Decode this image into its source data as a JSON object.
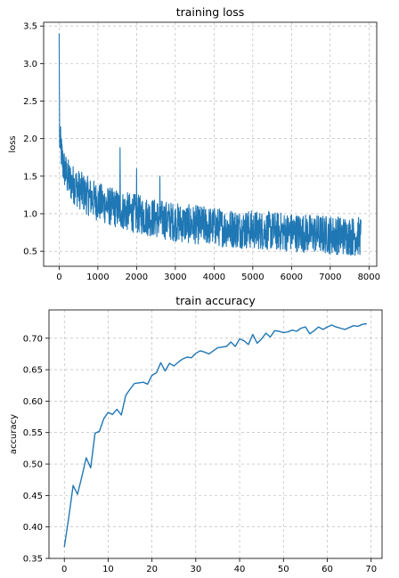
{
  "chart_data": [
    {
      "type": "line",
      "title": "training loss",
      "xlabel": "",
      "ylabel": "loss",
      "xlim": [
        -400,
        8200
      ],
      "ylim": [
        0.3,
        3.55
      ],
      "xticks": [
        0,
        1000,
        2000,
        3000,
        4000,
        5000,
        6000,
        7000,
        8000
      ],
      "yticks": [
        0.5,
        1.0,
        1.5,
        2.0,
        2.5,
        3.0,
        3.5
      ],
      "xtick_labels": [
        "0",
        "1000",
        "2000",
        "3000",
        "4000",
        "5000",
        "6000",
        "7000",
        "8000"
      ],
      "ytick_labels": [
        "0.5",
        "1.0",
        "1.5",
        "2.0",
        "2.5",
        "3.0",
        "3.5"
      ],
      "grid": true,
      "color": "#1f77b4",
      "series": [
        {
          "x": [
            0,
            20,
            50,
            100,
            200,
            300,
            400,
            500,
            600,
            700,
            800,
            900,
            1000,
            1200,
            1400,
            1600,
            1800,
            2000,
            2200,
            2400,
            2600,
            2800,
            3000,
            3200,
            3400,
            3600,
            3800,
            4000,
            4300,
            4600,
            4900,
            5200,
            5500,
            5800,
            6100,
            6400,
            6700,
            7000,
            7300,
            7600,
            7800
          ],
          "y": [
            3.4,
            2.0,
            1.85,
            1.65,
            1.5,
            1.42,
            1.38,
            1.33,
            1.29,
            1.25,
            1.22,
            1.19,
            1.16,
            1.12,
            1.08,
            1.05,
            1.02,
            1.0,
            0.97,
            0.95,
            0.93,
            0.91,
            0.89,
            0.87,
            0.86,
            0.85,
            0.84,
            0.83,
            0.81,
            0.8,
            0.79,
            0.78,
            0.77,
            0.76,
            0.75,
            0.74,
            0.73,
            0.72,
            0.71,
            0.7,
            0.7
          ],
          "spread": [
            0.0,
            0.25,
            0.25,
            0.26,
            0.26,
            0.26,
            0.26,
            0.26,
            0.26,
            0.26,
            0.26,
            0.26,
            0.26,
            0.26,
            0.26,
            0.26,
            0.26,
            0.26,
            0.26,
            0.26,
            0.26,
            0.26,
            0.26,
            0.26,
            0.26,
            0.26,
            0.26,
            0.26,
            0.26,
            0.26,
            0.26,
            0.26,
            0.26,
            0.26,
            0.26,
            0.26,
            0.26,
            0.26,
            0.26,
            0.26,
            0.26
          ],
          "spikes": [
            [
              1570,
              1.88
            ],
            [
              2000,
              1.6
            ],
            [
              2600,
              1.5
            ]
          ]
        }
      ]
    },
    {
      "type": "line",
      "title": "train accuracy",
      "xlabel": "",
      "ylabel": "accuracy",
      "xlim": [
        -3.5,
        72.5
      ],
      "ylim": [
        0.35,
        0.745
      ],
      "xticks": [
        0,
        10,
        20,
        30,
        40,
        50,
        60,
        70
      ],
      "yticks": [
        0.35,
        0.4,
        0.45,
        0.5,
        0.55,
        0.6,
        0.65,
        0.7
      ],
      "xtick_labels": [
        "0",
        "10",
        "20",
        "30",
        "40",
        "50",
        "60",
        "70"
      ],
      "ytick_labels": [
        "0.35",
        "0.40",
        "0.45",
        "0.50",
        "0.55",
        "0.60",
        "0.65",
        "0.70"
      ],
      "grid": true,
      "color": "#1f77b4",
      "series": [
        {
          "x": [
            0,
            1,
            2,
            3,
            4,
            5,
            6,
            7,
            8,
            9,
            10,
            11,
            12,
            13,
            14,
            15,
            16,
            17,
            18,
            19,
            20,
            21,
            22,
            23,
            24,
            25,
            26,
            27,
            28,
            29,
            30,
            31,
            32,
            33,
            34,
            35,
            36,
            37,
            38,
            39,
            40,
            41,
            42,
            43,
            44,
            45,
            46,
            47,
            48,
            49,
            50,
            51,
            52,
            53,
            54,
            55,
            56,
            57,
            58,
            59,
            60,
            61,
            62,
            63,
            64,
            65,
            66,
            67,
            68,
            69
          ],
          "y": [
            0.368,
            0.414,
            0.466,
            0.452,
            0.48,
            0.51,
            0.494,
            0.549,
            0.552,
            0.572,
            0.582,
            0.579,
            0.587,
            0.578,
            0.609,
            0.619,
            0.628,
            0.629,
            0.63,
            0.627,
            0.641,
            0.645,
            0.661,
            0.648,
            0.66,
            0.656,
            0.662,
            0.667,
            0.67,
            0.669,
            0.676,
            0.68,
            0.678,
            0.675,
            0.68,
            0.685,
            0.686,
            0.687,
            0.694,
            0.687,
            0.699,
            0.696,
            0.69,
            0.706,
            0.692,
            0.699,
            0.708,
            0.702,
            0.712,
            0.711,
            0.709,
            0.71,
            0.713,
            0.711,
            0.716,
            0.718,
            0.707,
            0.712,
            0.718,
            0.714,
            0.718,
            0.721,
            0.718,
            0.716,
            0.714,
            0.717,
            0.72,
            0.719,
            0.722,
            0.723
          ]
        }
      ]
    }
  ]
}
